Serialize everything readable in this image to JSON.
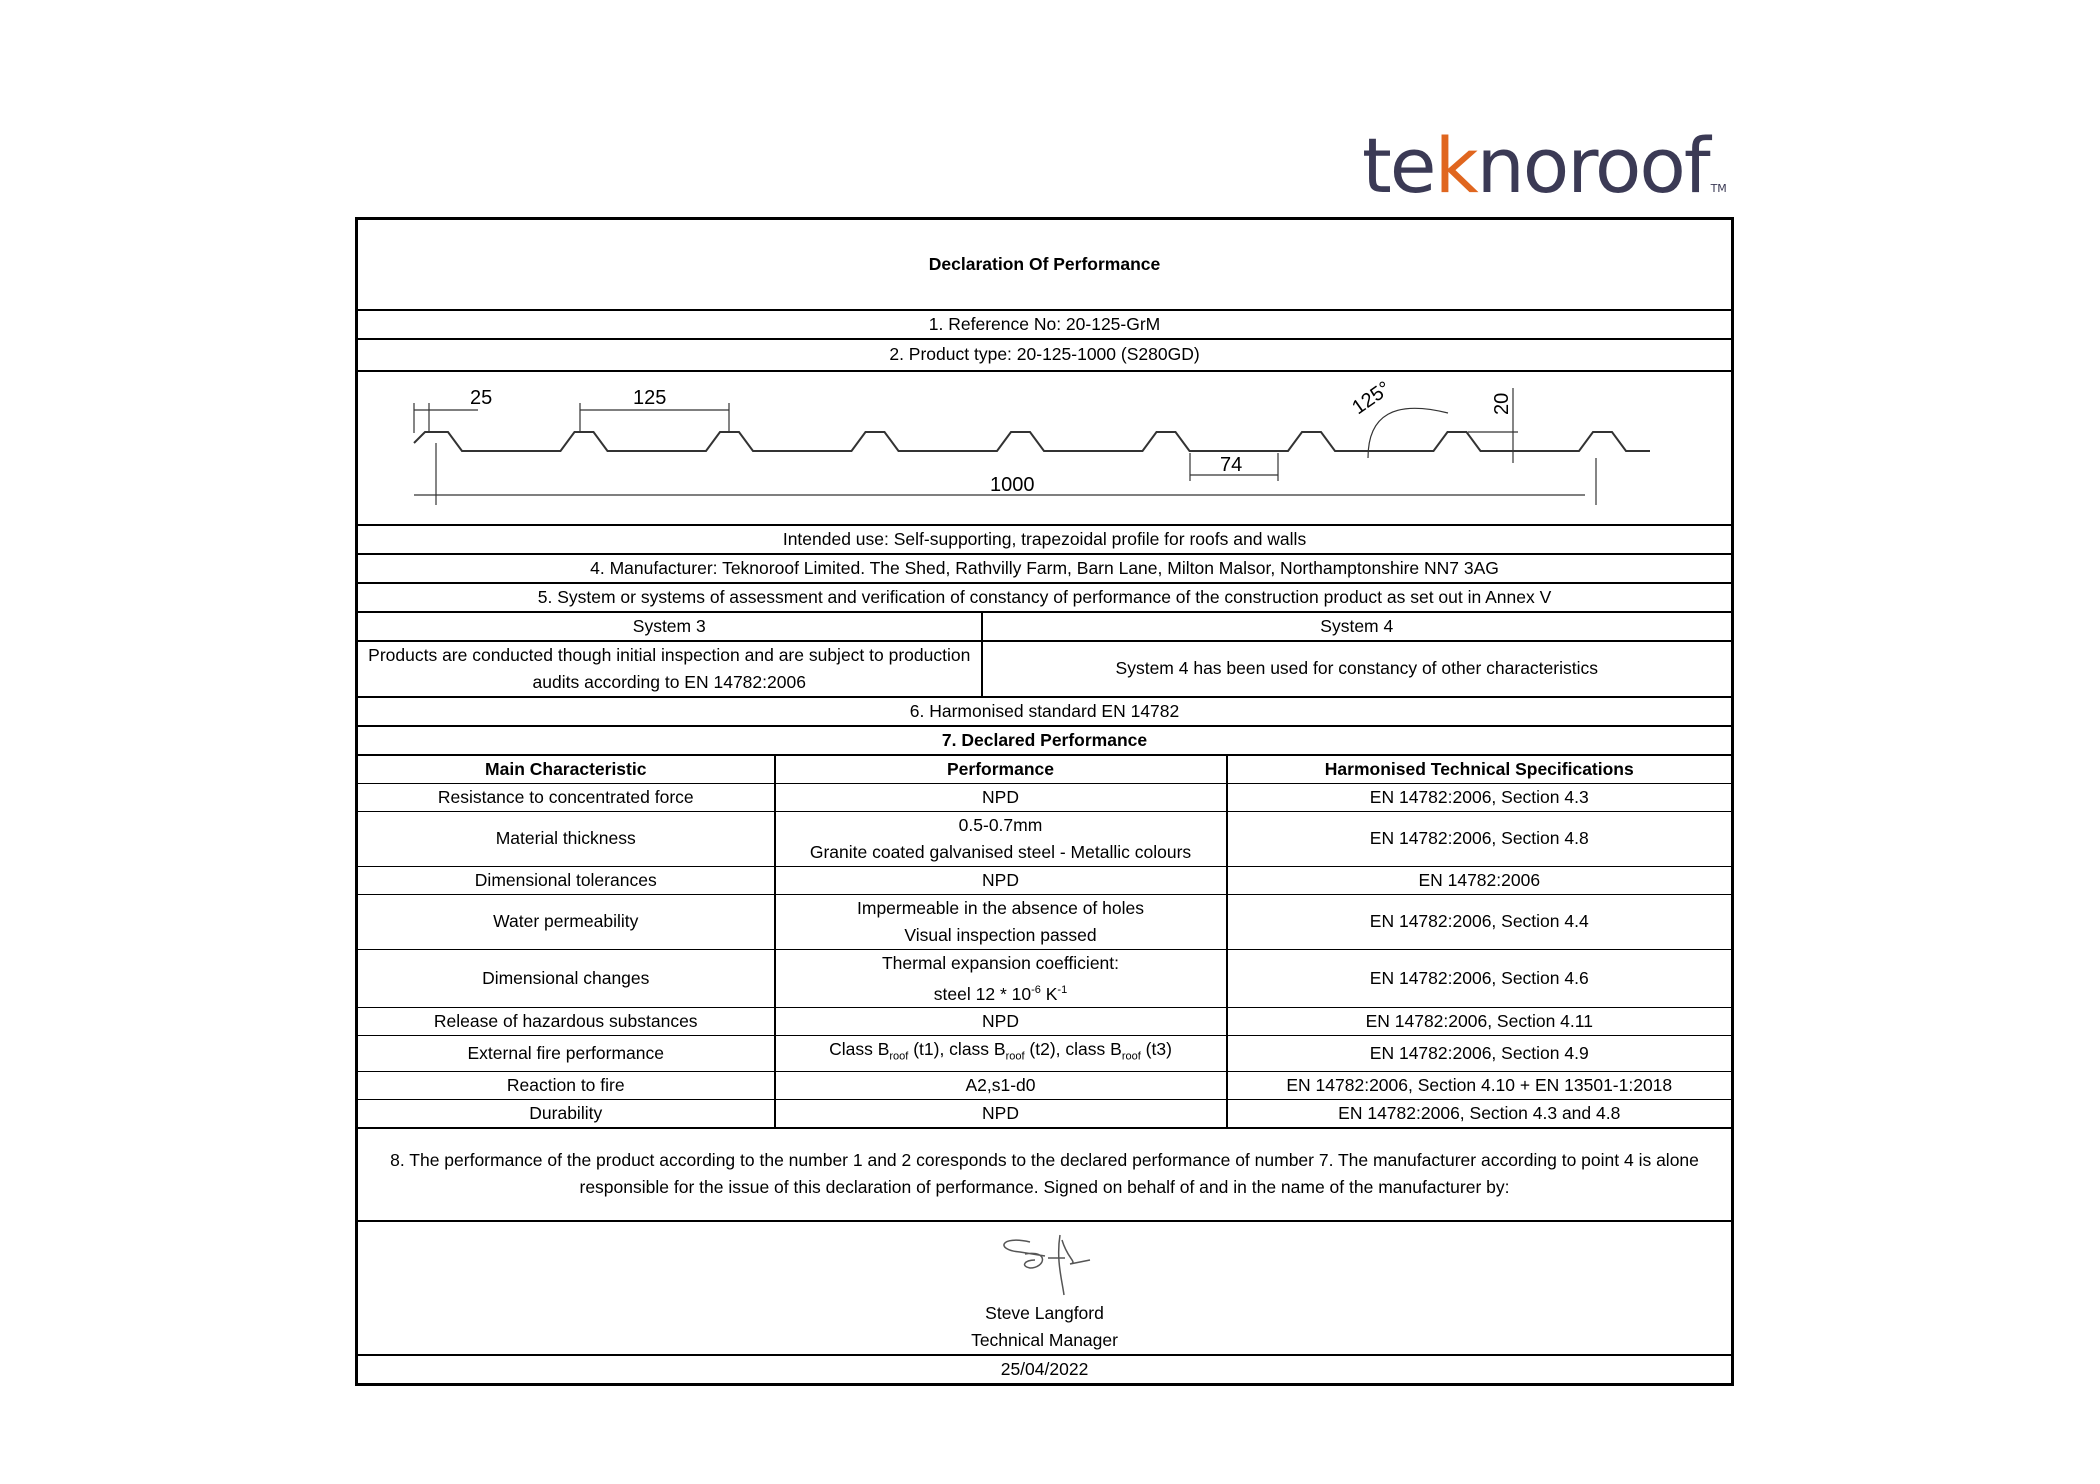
{
  "logo": {
    "prefix": "te",
    "accent": "k",
    "suffix": "noroof",
    "tm": "TM",
    "color": "#3b3a55",
    "accent_color": "#e0661f"
  },
  "title": "Declaration Of Performance",
  "reference": "1. Reference No: 20-125-GrM",
  "product_type": "2. Product type: 20-125-1000 (S280GD)",
  "diagram": {
    "dim_25": "25",
    "dim_125": "125",
    "dim_1000": "1000",
    "dim_74": "74",
    "angle": "125°",
    "dim_20": "20"
  },
  "intended_use": "Intended use: Self-supporting, trapezoidal profile for roofs and walls",
  "manufacturer": "4. Manufacturer: Teknoroof Limited. The Shed, Rathvilly Farm, Barn Lane, Milton Malsor, Northamptonshire NN7 3AG",
  "systems_heading": "5. System or systems of assessment and verification of constancy of performance of the construction product as set out in Annex V",
  "system3": {
    "label": "System 3",
    "text": "Products are conducted though initial inspection and are subject to production audits according to EN 14782:2006"
  },
  "system4": {
    "label": "System 4",
    "text": "System 4 has been used for constancy of other characteristics"
  },
  "harmonised_standard": "6. Harmonised standard EN 14782",
  "declared_heading": "7. Declared Performance",
  "columns": [
    "Main Characteristic",
    "Performance",
    "Harmonised Technical Specifications"
  ],
  "rows": [
    {
      "characteristic": "Resistance to concentrated force",
      "performance": "NPD",
      "spec": "EN 14782:2006, Section 4.3"
    },
    {
      "characteristic": "Material thickness",
      "performance": "0.5-0.7mm",
      "performance2": "Granite coated galvanised steel - Metallic colours",
      "spec": "EN 14782:2006, Section 4.8"
    },
    {
      "characteristic": "Dimensional tolerances",
      "performance": "NPD",
      "spec": "EN 14782:2006"
    },
    {
      "characteristic": "Water permeability",
      "performance": "Impermeable in the absence of holes",
      "performance2": "Visual inspection passed",
      "spec": "EN 14782:2006, Section 4.4"
    },
    {
      "characteristic": "Dimensional changes",
      "performance": "Thermal expansion coefficient:",
      "performance2_a": "steel 12 * 10",
      "performance2_exp1": "-6",
      "performance2_b": " K",
      "performance2_exp2": "-1",
      "spec": "EN 14782:2006, Section 4.6"
    },
    {
      "characteristic": "Release of hazardous substances",
      "performance": "NPD",
      "spec": "EN 14782:2006, Section 4.11"
    },
    {
      "characteristic": "External fire performance",
      "p1": "Class B",
      "sub": "roof",
      "p2": " (t1), class B",
      "p3": " (t2), class B",
      "p4": " (t3)",
      "spec": "EN 14782:2006, Section 4.9"
    },
    {
      "characteristic": "Reaction to fire",
      "performance": "A2,s1-d0",
      "spec": "EN 14782:2006, Section 4.10 + EN 13501-1:2018"
    },
    {
      "characteristic": "Durability",
      "performance": "NPD",
      "spec": "EN 14782:2006, Section 4.3 and 4.8"
    }
  ],
  "statement": "8. The performance of the product according to the number 1 and 2 coresponds to the declared performance of number 7. The manufacturer according to point 4 is alone responsible for the issue of this declaration of performance. Signed on behalf of and in the name of the manufacturer by:",
  "signatory": {
    "name": "Steve Langford",
    "role": "Technical Manager",
    "date": "25/04/2022"
  }
}
